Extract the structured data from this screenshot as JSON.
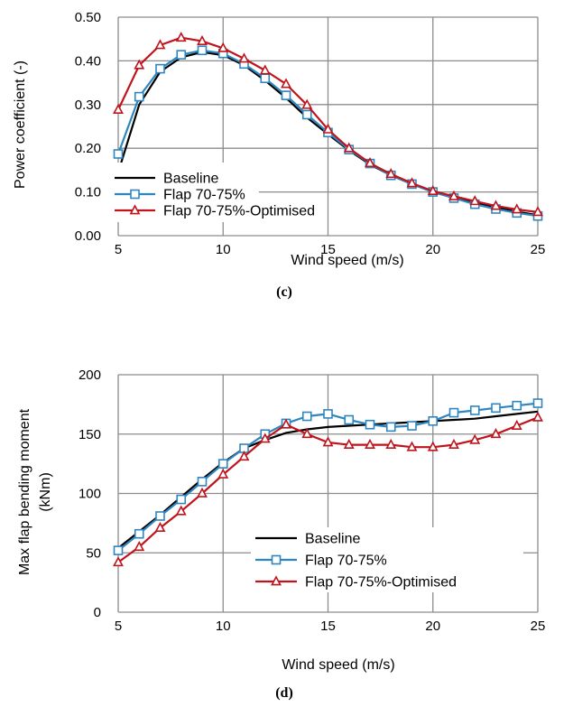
{
  "colors": {
    "baseline": "#000000",
    "flap": "#2e86c1",
    "optimised": "#c0141c",
    "grid": "#8c8c8c",
    "axis": "#8c8c8c"
  },
  "chart_data": [
    {
      "type": "line",
      "caption": "(c)",
      "xlabel": "Wind speed (m/s)",
      "ylabel": "Power coefficient (-)",
      "xlim": [
        5,
        25
      ],
      "ylim": [
        0,
        0.5
      ],
      "xticks": [
        "5",
        "10",
        "15",
        "20",
        "25"
      ],
      "yticks": [
        "0.00",
        "0.10",
        "0.20",
        "0.30",
        "0.40",
        "0.50"
      ],
      "grid": "major x and y",
      "legend_position": "bottom-left",
      "x": [
        5,
        6,
        7,
        8,
        9,
        10,
        11,
        12,
        13,
        14,
        15,
        16,
        17,
        18,
        19,
        20,
        21,
        22,
        23,
        24,
        25
      ],
      "series": [
        {
          "name": "Baseline",
          "marker": "none",
          "values": [
            0.145,
            0.3,
            0.375,
            0.408,
            0.42,
            0.413,
            0.39,
            0.355,
            0.315,
            0.27,
            0.232,
            0.195,
            0.163,
            0.138,
            0.118,
            0.1,
            0.087,
            0.075,
            0.065,
            0.055,
            0.047
          ]
        },
        {
          "name": "Flap 70-75%",
          "marker": "square",
          "values": [
            0.187,
            0.318,
            0.382,
            0.414,
            0.424,
            0.417,
            0.393,
            0.36,
            0.321,
            0.277,
            0.236,
            0.197,
            0.165,
            0.138,
            0.118,
            0.1,
            0.086,
            0.072,
            0.061,
            0.052,
            0.045
          ]
        },
        {
          "name": "Flap 70-75%-Optimised",
          "marker": "triangle",
          "values": [
            0.288,
            0.39,
            0.436,
            0.453,
            0.445,
            0.429,
            0.405,
            0.378,
            0.347,
            0.299,
            0.243,
            0.2,
            0.166,
            0.141,
            0.12,
            0.102,
            0.09,
            0.079,
            0.068,
            0.06,
            0.054
          ]
        }
      ]
    },
    {
      "type": "line",
      "caption": "(d)",
      "xlabel": "Wind speed (m/s)",
      "ylabel_line1": "Max flap bending moment",
      "ylabel_line2": "(kNm)",
      "xlim": [
        5,
        25
      ],
      "ylim": [
        0,
        200
      ],
      "xticks": [
        "5",
        "10",
        "15",
        "20",
        "25"
      ],
      "yticks": [
        "0",
        "50",
        "100",
        "150",
        "200"
      ],
      "grid": "major x and y",
      "legend_position": "bottom-right",
      "x": [
        5,
        6,
        7,
        8,
        9,
        10,
        11,
        12,
        13,
        14,
        15,
        16,
        17,
        18,
        19,
        20,
        21,
        22,
        23,
        24,
        25
      ],
      "series": [
        {
          "name": "Baseline",
          "marker": "none",
          "values": [
            54,
            68,
            82,
            97,
            112,
            126,
            138,
            145,
            151,
            154,
            156,
            157,
            158,
            159,
            160,
            161,
            162,
            163,
            165,
            167,
            169
          ]
        },
        {
          "name": "Flap 70-75%",
          "marker": "square",
          "values": [
            52,
            66,
            81,
            95,
            110,
            125,
            138,
            150,
            159,
            165,
            167,
            162,
            158,
            156,
            157,
            161,
            168,
            170,
            172,
            174,
            176
          ]
        },
        {
          "name": "Flap 70-75%-Optimised",
          "marker": "triangle",
          "values": [
            42,
            55,
            71,
            85,
            100,
            116,
            131,
            146,
            158,
            150,
            143,
            141,
            141,
            141,
            139,
            139,
            141,
            145,
            150,
            157,
            164
          ]
        }
      ]
    }
  ]
}
